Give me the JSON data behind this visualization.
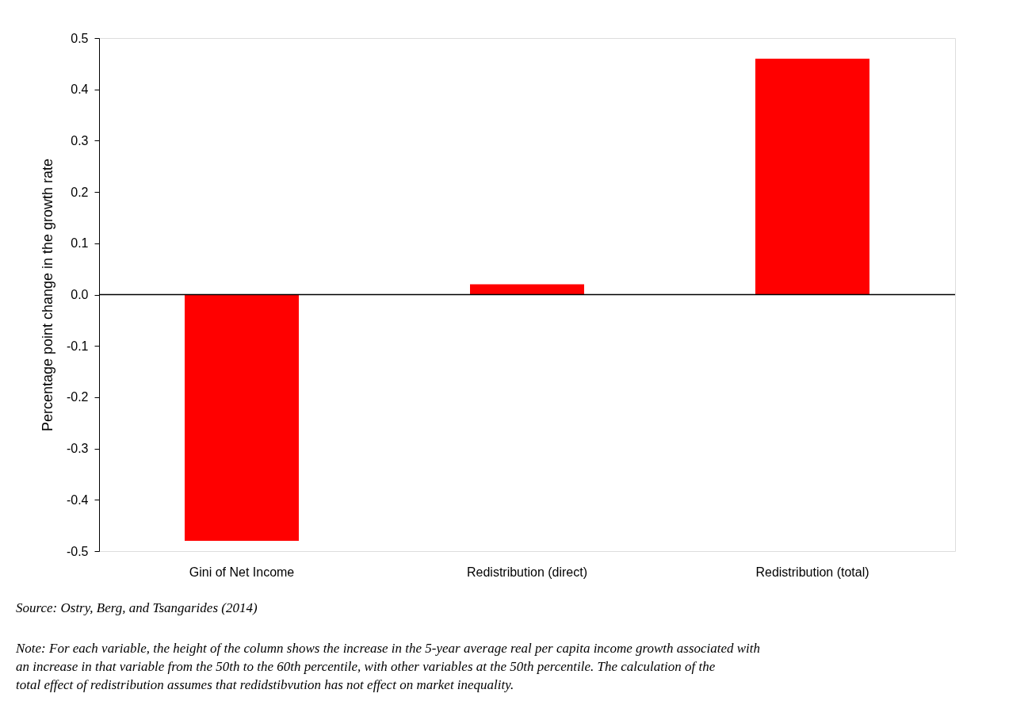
{
  "chart_data": {
    "type": "bar",
    "categories": [
      "Gini of Net Income",
      "Redistribution (direct)",
      "Redistribution (total)"
    ],
    "values": [
      -0.48,
      0.02,
      0.46
    ],
    "color": "#ff0000",
    "ylabel": "Percentage point change in the growth rate",
    "ylim": [
      -0.5,
      0.5
    ],
    "yticks": [
      {
        "value": 0.5,
        "label": "0.5"
      },
      {
        "value": 0.4,
        "label": "0.4"
      },
      {
        "value": 0.3,
        "label": "0.3"
      },
      {
        "value": 0.2,
        "label": "0.2"
      },
      {
        "value": 0.1,
        "label": "0.1"
      },
      {
        "value": 0,
        "label": "0.0"
      },
      {
        "value": -0.1,
        "label": "-0.1"
      },
      {
        "value": -0.2,
        "label": "-0.2"
      },
      {
        "value": -0.3,
        "label": "-0.3"
      },
      {
        "value": -0.4,
        "label": "-0.4"
      },
      {
        "value": -0.5,
        "label": "-0.5"
      }
    ],
    "ref_lines": [
      {
        "axis": "y",
        "value": 0,
        "color": "#000000"
      }
    ],
    "grid": false,
    "annotations": [
      "Source: Ostry, Berg, and Tsangarides (2014)",
      "Note: For each variable, the height of the column shows the increase in the 5-year average real per capita income growth associated with an increase in that variable from the 50th to the 60th percentile, with other variables at the 50th percentile. The calculation of the total effect of redistribution assumes that redidstibvution has not effect on market inequality."
    ]
  }
}
